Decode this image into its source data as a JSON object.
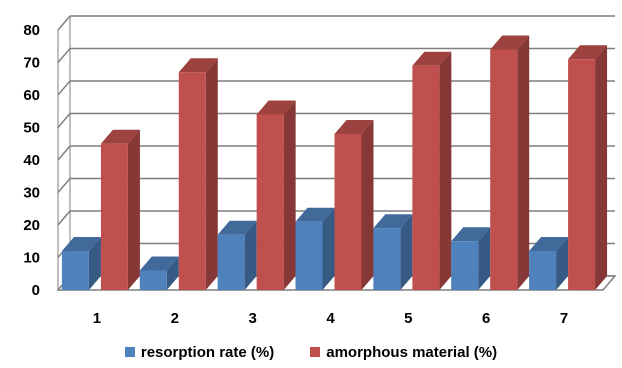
{
  "chart_data": {
    "type": "bar",
    "categories": [
      "1",
      "2",
      "3",
      "4",
      "5",
      "6",
      "7"
    ],
    "series": [
      {
        "name": "resorption rate (%)",
        "values": [
          12,
          6,
          17,
          21,
          19,
          15,
          12
        ],
        "color": "#4f81bd"
      },
      {
        "name": "amorphous material (%)",
        "values": [
          45,
          67,
          54,
          48,
          69,
          74,
          71
        ],
        "color": "#c0504d"
      }
    ],
    "yticks": [
      "0",
      "10",
      "20",
      "30",
      "40",
      "50",
      "60",
      "70",
      "80"
    ],
    "ylim": [
      0,
      80
    ],
    "grid": true,
    "legend_position": "bottom",
    "style": "3d-clustered-column"
  }
}
